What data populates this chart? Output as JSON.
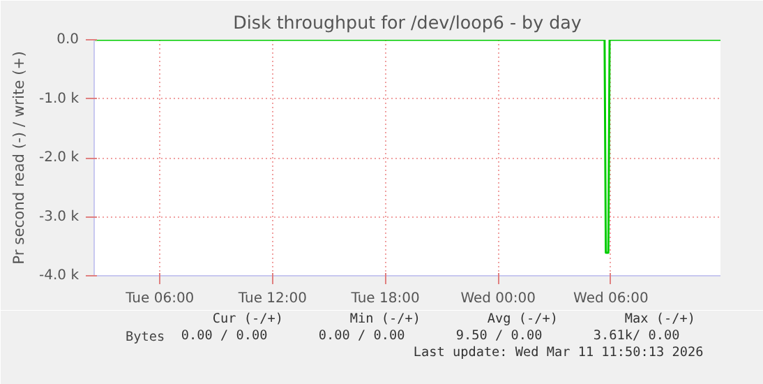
{
  "chart_data": {
    "type": "line",
    "title": "Disk throughput for /dev/loop6 - by day",
    "ylabel": "Pr second read (-) / write (+)",
    "x": [
      "2026-03-10T02:30",
      "2026-03-11T05:40",
      "2026-03-11T05:44",
      "2026-03-11T05:52",
      "2026-03-11T05:56",
      "2026-03-11T11:50"
    ],
    "series": [
      {
        "name": "Bytes",
        "color": "#00cc00",
        "values": [
          0,
          0,
          -3610,
          -3610,
          0,
          0
        ]
      }
    ],
    "xlim": [
      "2026-03-10T02:30",
      "2026-03-11T11:50"
    ],
    "xticks": [
      {
        "value": "2026-03-10T06:00",
        "label": "Tue 06:00"
      },
      {
        "value": "2026-03-10T12:00",
        "label": "Tue 12:00"
      },
      {
        "value": "2026-03-10T18:00",
        "label": "Tue 18:00"
      },
      {
        "value": "2026-03-11T00:00",
        "label": "Wed 00:00"
      },
      {
        "value": "2026-03-11T06:00",
        "label": "Wed 06:00"
      }
    ],
    "ylim": [
      -4000,
      0
    ],
    "yticks": [
      {
        "value": -4000,
        "label": "-4.0 k"
      },
      {
        "value": -3000,
        "label": "-3.0 k"
      },
      {
        "value": -2000,
        "label": "-2.0 k"
      },
      {
        "value": -1000,
        "label": "-1.0 k"
      },
      {
        "value": 0,
        "label": "0.0"
      }
    ],
    "grid": true,
    "legend": "bottom",
    "annotations": [
      "Cur (-/+)",
      "Min (-/+)",
      "Avg (-/+)",
      "Max (-/+)",
      "0.00 /   0.00",
      "0.00 /   0.00",
      "9.50 /   0.00",
      "3.61k/   0.00",
      "Last update: Wed Mar 11 11:50:13 2026"
    ]
  }
}
